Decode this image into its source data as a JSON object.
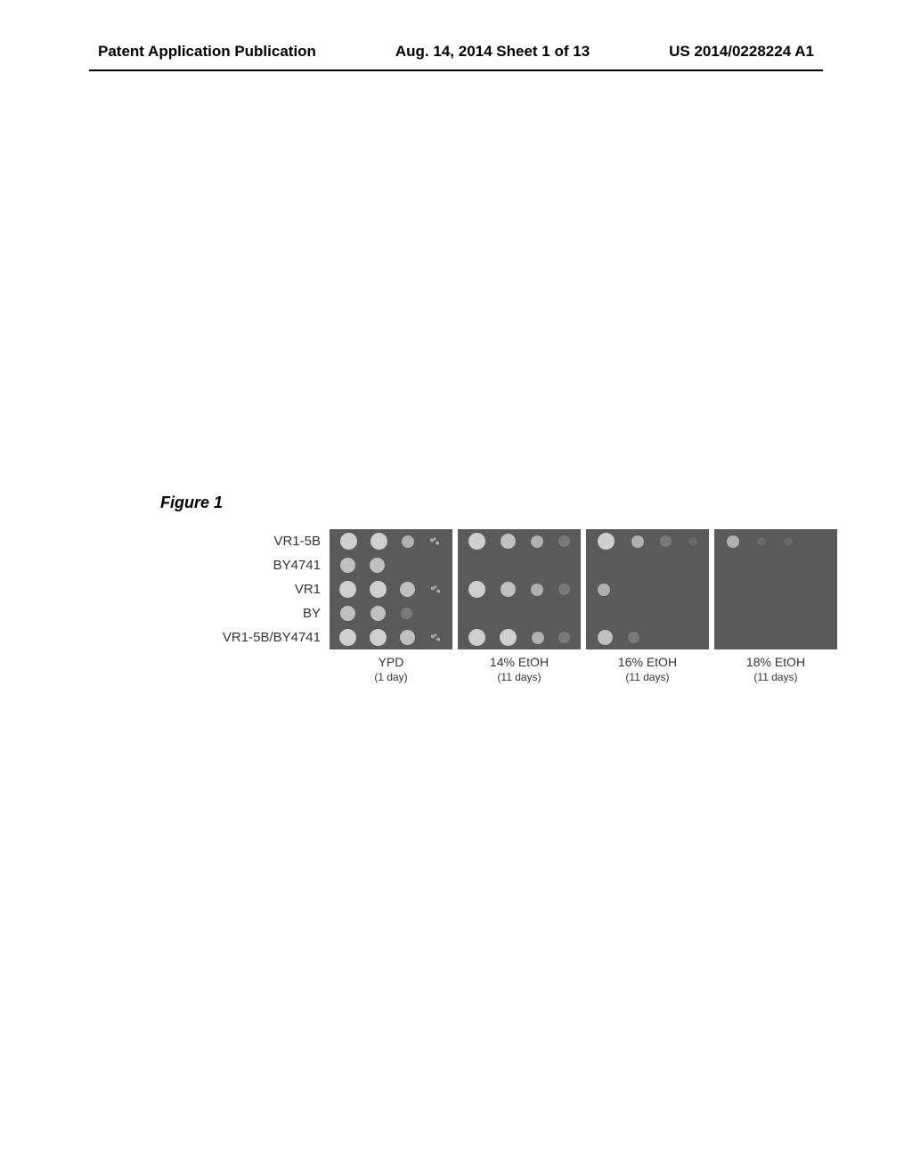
{
  "header": {
    "left": "Patent Application Publication",
    "center": "Aug. 14, 2014  Sheet 1 of 13",
    "right": "US 2014/0228224 A1"
  },
  "figure": {
    "label": "Figure 1",
    "row_labels": [
      "VR1-5B",
      "BY4741",
      "VR1",
      "BY",
      "VR1-5B/BY4741"
    ],
    "panel_titles": [
      "YPD",
      "14% EtOH",
      "16% EtOH",
      "18% EtOH"
    ],
    "panel_subtitles": [
      "(1 day)",
      "(11 days)",
      "(11 days)",
      "(11 days)"
    ],
    "panel_bg": "#5a5a5a",
    "spot_color_light": "#cfcfcf",
    "spot_color_mid": "#b0b0b0",
    "spot_color_dark": "#888888",
    "growth": {
      "VR1-5B": [
        [
          "full",
          "full",
          "small",
          "dots"
        ],
        [
          "full",
          "med",
          "small",
          "faint"
        ],
        [
          "full",
          "small",
          "faint",
          "vfaint"
        ],
        [
          "small",
          "vfaint",
          "vfaint",
          "none"
        ]
      ],
      "BY4741": [
        [
          "med",
          "med",
          "none",
          "none"
        ],
        [
          "none",
          "none",
          "none",
          "none"
        ],
        [
          "none",
          "none",
          "none",
          "none"
        ],
        [
          "none",
          "none",
          "none",
          "none"
        ]
      ],
      "VR1": [
        [
          "full",
          "full",
          "med",
          "dots"
        ],
        [
          "full",
          "med",
          "small",
          "faint"
        ],
        [
          "small",
          "none",
          "none",
          "none"
        ],
        [
          "none",
          "none",
          "none",
          "none"
        ]
      ],
      "BY": [
        [
          "med",
          "med",
          "faint",
          "none"
        ],
        [
          "none",
          "none",
          "none",
          "none"
        ],
        [
          "none",
          "none",
          "none",
          "none"
        ],
        [
          "none",
          "none",
          "none",
          "none"
        ]
      ],
      "VR1-5B/BY4741": [
        [
          "full",
          "full",
          "med",
          "dots"
        ],
        [
          "full",
          "full",
          "small",
          "faint"
        ],
        [
          "med",
          "faint",
          "none",
          "none"
        ],
        [
          "none",
          "none",
          "none",
          "none"
        ]
      ]
    }
  }
}
